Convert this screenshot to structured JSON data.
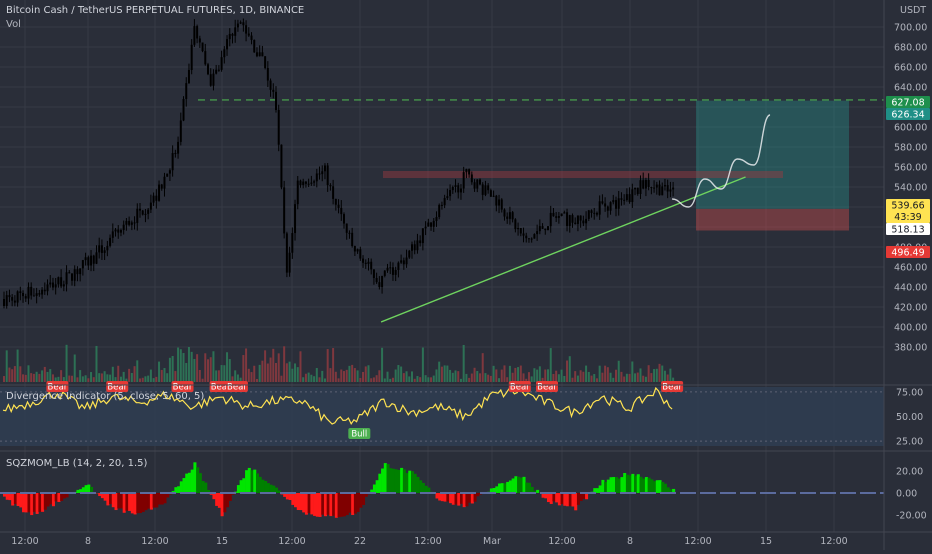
{
  "header": {
    "title": "Bitcoin Cash / TetherUS PERPETUAL FUTURES, 1D, BINANCE",
    "vol_label": "Vol"
  },
  "main_axis": {
    "unit": "USDT",
    "ticks": [
      "380.00",
      "400.00",
      "420.00",
      "440.00",
      "460.00",
      "480.00",
      "500.00",
      "520.00",
      "540.00",
      "560.00",
      "580.00",
      "600.00",
      "620.00",
      "640.00",
      "660.00",
      "680.00",
      "700.00"
    ],
    "badges": {
      "resistance": "627.08",
      "target": "626.34",
      "price": "539.66",
      "countdown": "43:39",
      "entry": "518.13",
      "stop": "496.49"
    }
  },
  "colors": {
    "background": "#2a2e39",
    "green": "#4caf50",
    "red": "#e53935",
    "yellow": "#ffe352",
    "teal_zone": "#26a69a",
    "red_zone": "#ef5350",
    "text": "#b2b5be"
  },
  "chart_data": [
    {
      "type": "candlestick",
      "panel": "price",
      "ylim": [
        370,
        720
      ],
      "x_ticks": [
        "12:00",
        "8",
        "12:00",
        "15",
        "12:00",
        "22",
        "12:00",
        "Mar",
        "12:00",
        "8",
        "12:00",
        "15",
        "12:00"
      ],
      "path_key_points": [
        {
          "x": 0,
          "y": 428
        },
        {
          "x": 12,
          "y": 436
        },
        {
          "x": 24,
          "y": 450
        },
        {
          "x": 34,
          "y": 472
        },
        {
          "x": 44,
          "y": 500
        },
        {
          "x": 56,
          "y": 530
        },
        {
          "x": 64,
          "y": 582
        },
        {
          "x": 70,
          "y": 700
        },
        {
          "x": 76,
          "y": 640
        },
        {
          "x": 86,
          "y": 710
        },
        {
          "x": 96,
          "y": 660
        },
        {
          "x": 100,
          "y": 620
        },
        {
          "x": 104,
          "y": 450
        },
        {
          "x": 108,
          "y": 545
        },
        {
          "x": 118,
          "y": 555
        },
        {
          "x": 128,
          "y": 480
        },
        {
          "x": 138,
          "y": 445
        },
        {
          "x": 148,
          "y": 470
        },
        {
          "x": 158,
          "y": 510
        },
        {
          "x": 170,
          "y": 552
        },
        {
          "x": 182,
          "y": 525
        },
        {
          "x": 192,
          "y": 485
        },
        {
          "x": 202,
          "y": 510
        },
        {
          "x": 212,
          "y": 505
        },
        {
          "x": 220,
          "y": 522
        },
        {
          "x": 228,
          "y": 525
        },
        {
          "x": 236,
          "y": 545
        },
        {
          "x": 244,
          "y": 535
        }
      ],
      "annotations": {
        "resistance": 627.08,
        "target": 626.34,
        "entry": 518.13,
        "stop": 496.49,
        "resistance_zone": [
          549,
          556
        ],
        "trendline": [
          {
            "x": 139,
            "y": 405
          },
          {
            "x": 273,
            "y": 550
          }
        ],
        "projection": [
          {
            "x": 246,
            "y": 528
          },
          {
            "x": 252,
            "y": 520
          },
          {
            "x": 258,
            "y": 548
          },
          {
            "x": 264,
            "y": 538
          },
          {
            "x": 270,
            "y": 568
          },
          {
            "x": 276,
            "y": 562
          },
          {
            "x": 282,
            "y": 612
          }
        ]
      }
    },
    {
      "type": "line",
      "panel": "oscillator",
      "name": "Divergence Indicator (5, close, 5, 60, 5)",
      "ylim": [
        20,
        80
      ],
      "ticks": [
        "75.00",
        "50.00",
        "25.00"
      ],
      "key_points": [
        {
          "x": 0,
          "y": 56
        },
        {
          "x": 10,
          "y": 64
        },
        {
          "x": 20,
          "y": 74
        },
        {
          "x": 30,
          "y": 58
        },
        {
          "x": 40,
          "y": 70
        },
        {
          "x": 50,
          "y": 64
        },
        {
          "x": 60,
          "y": 72
        },
        {
          "x": 70,
          "y": 60
        },
        {
          "x": 80,
          "y": 70
        },
        {
          "x": 90,
          "y": 60
        },
        {
          "x": 100,
          "y": 66
        },
        {
          "x": 110,
          "y": 66
        },
        {
          "x": 120,
          "y": 44
        },
        {
          "x": 130,
          "y": 46
        },
        {
          "x": 140,
          "y": 66
        },
        {
          "x": 150,
          "y": 54
        },
        {
          "x": 160,
          "y": 60
        },
        {
          "x": 170,
          "y": 50
        },
        {
          "x": 180,
          "y": 72
        },
        {
          "x": 190,
          "y": 76
        },
        {
          "x": 200,
          "y": 64
        },
        {
          "x": 210,
          "y": 54
        },
        {
          "x": 220,
          "y": 70
        },
        {
          "x": 230,
          "y": 58
        },
        {
          "x": 240,
          "y": 76
        },
        {
          "x": 246,
          "y": 60
        },
        {
          "x": 250,
          "y": 68
        }
      ],
      "labels": [
        {
          "text": "Bear",
          "x": 20
        },
        {
          "text": "Bear",
          "x": 42
        },
        {
          "text": "Bear",
          "x": 66
        },
        {
          "text": "Bear",
          "x": 80
        },
        {
          "text": "Bear",
          "x": 86
        },
        {
          "text": "Bull",
          "x": 131
        },
        {
          "text": "Bear",
          "x": 190
        },
        {
          "text": "Bear",
          "x": 200
        },
        {
          "text": "Bear",
          "x": 246
        }
      ]
    },
    {
      "type": "histogram",
      "panel": "momentum",
      "name": "SQZMOM_LB (14, 2, 20, 1.5)",
      "ylim": [
        -30,
        30
      ],
      "ticks": [
        "20.00",
        "0.00",
        "-20.00"
      ],
      "key_points": [
        {
          "x": 0,
          "y": -5
        },
        {
          "x": 10,
          "y": -20
        },
        {
          "x": 20,
          "y": -8
        },
        {
          "x": 30,
          "y": 8
        },
        {
          "x": 40,
          "y": -14
        },
        {
          "x": 50,
          "y": -20
        },
        {
          "x": 60,
          "y": -6
        },
        {
          "x": 70,
          "y": 26
        },
        {
          "x": 80,
          "y": -20
        },
        {
          "x": 90,
          "y": 24
        },
        {
          "x": 100,
          "y": 4
        },
        {
          "x": 110,
          "y": -18
        },
        {
          "x": 120,
          "y": -22
        },
        {
          "x": 130,
          "y": -18
        },
        {
          "x": 140,
          "y": 26
        },
        {
          "x": 150,
          "y": 18
        },
        {
          "x": 160,
          "y": -6
        },
        {
          "x": 170,
          "y": -12
        },
        {
          "x": 180,
          "y": 6
        },
        {
          "x": 190,
          "y": 16
        },
        {
          "x": 200,
          "y": -8
        },
        {
          "x": 210,
          "y": -14
        },
        {
          "x": 220,
          "y": 10
        },
        {
          "x": 230,
          "y": 18
        },
        {
          "x": 240,
          "y": 12
        },
        {
          "x": 250,
          "y": -4
        }
      ]
    }
  ]
}
